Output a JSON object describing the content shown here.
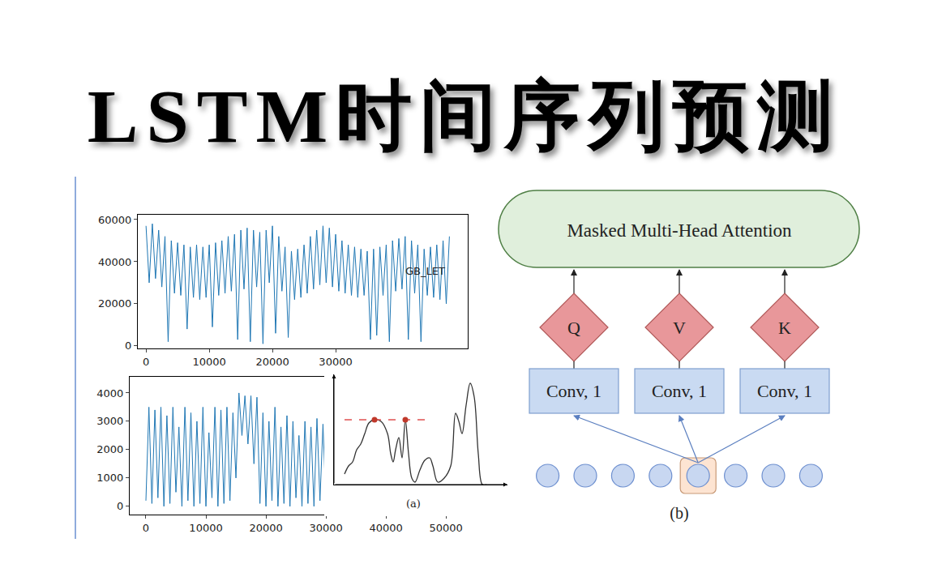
{
  "title": "LSTM时间序列预测",
  "chart_data": [
    {
      "type": "line",
      "color": "#1f77b4",
      "label": "GB_LET",
      "x": [
        0,
        500,
        1000,
        1500,
        2000,
        2500,
        3000,
        3500,
        4000,
        4500,
        5000,
        5500,
        6000,
        6500,
        7000,
        7500,
        8000,
        8500,
        9000,
        9500,
        10000,
        10500,
        11000,
        11500,
        12000,
        12500,
        13000,
        13500,
        14000,
        14500,
        15000,
        15500,
        16000,
        16500,
        17000,
        17500,
        18000,
        18500,
        19000,
        19500,
        20000,
        20500,
        21000,
        21500,
        22000,
        22500,
        23000,
        23500,
        24000,
        24500,
        25000,
        25500,
        26000,
        26500,
        27000,
        27500,
        28000,
        28500,
        29000,
        29500,
        30000,
        30500,
        31000,
        31500,
        32000,
        32500,
        33000,
        33500,
        34000,
        34500,
        35000,
        35500,
        36000,
        36500,
        37000,
        37500,
        38000,
        38500,
        39000,
        39500,
        40000,
        40500,
        41000,
        41500,
        42000,
        42500,
        43000,
        43500,
        44000,
        44500,
        45000,
        45500,
        46000,
        46500,
        47000,
        47500,
        48000
      ],
      "values": [
        57000,
        30000,
        58000,
        32000,
        55000,
        28000,
        52000,
        2000,
        50000,
        25000,
        49000,
        24000,
        48000,
        8000,
        47000,
        23000,
        48000,
        22000,
        47000,
        23000,
        48000,
        9000,
        49000,
        24000,
        50000,
        25000,
        52000,
        26000,
        53000,
        3000,
        55000,
        27000,
        56000,
        2000,
        55000,
        28000,
        54000,
        1000,
        55000,
        30000,
        57000,
        6000,
        52000,
        26000,
        47000,
        4000,
        45000,
        22000,
        46000,
        23000,
        48000,
        25000,
        52000,
        27000,
        55000,
        29000,
        57000,
        30000,
        56000,
        28000,
        53000,
        26000,
        50000,
        25000,
        48000,
        24000,
        47000,
        23000,
        46000,
        24000,
        45000,
        3000,
        46000,
        5000,
        47000,
        24000,
        48000,
        2000,
        50000,
        26000,
        51000,
        27000,
        52000,
        3000,
        50000,
        25000,
        48000,
        2000,
        46000,
        24000,
        47000,
        23000,
        48000,
        22000,
        50000,
        20000,
        52000
      ],
      "xlim": [
        -1300,
        50900
      ],
      "ylim": [
        -1200,
        62300
      ],
      "xticks": [
        0,
        10000,
        20000,
        30000
      ],
      "yticks": [
        0,
        20000,
        40000,
        60000
      ],
      "grid": false
    },
    {
      "type": "line",
      "color": "#1f77b4",
      "x": [
        0,
        500,
        1000,
        1500,
        2000,
        2500,
        3000,
        3500,
        4000,
        4500,
        5000,
        5500,
        6000,
        6500,
        7000,
        7500,
        8000,
        8500,
        9000,
        9500,
        10000,
        10500,
        11000,
        11500,
        12000,
        12500,
        13000,
        13500,
        14000,
        14500,
        15000,
        15500,
        16000,
        16500,
        17000,
        17500,
        18000,
        18500,
        19000,
        19500,
        20000,
        20500,
        21000,
        21500,
        22000,
        22500,
        23000,
        23500,
        24000,
        24500,
        25000,
        25500,
        26000,
        26500,
        27000,
        27500,
        28000,
        28500,
        29000,
        29500,
        30000
      ],
      "values": [
        200,
        3500,
        100,
        3400,
        300,
        3500,
        0,
        3200,
        100,
        3500,
        500,
        2800,
        0,
        3500,
        200,
        3300,
        0,
        3000,
        100,
        3500,
        0,
        2600,
        300,
        3500,
        0,
        3400,
        100,
        3500,
        200,
        3300,
        1000,
        4000,
        2500,
        3900,
        2200,
        3900,
        1500,
        3850,
        100,
        3300,
        0,
        3000,
        200,
        3500,
        0,
        2800,
        100,
        3200,
        0,
        3000,
        300,
        2500,
        0,
        3000,
        100,
        2800,
        0,
        3100,
        200,
        2900,
        100
      ],
      "xlim": [
        -2700,
        52000
      ],
      "ylim": [
        -290,
        4570
      ],
      "xticks": [
        0,
        10000,
        20000,
        30000,
        40000,
        50000
      ],
      "yticks": [
        0,
        1000,
        2000,
        3000,
        4000
      ],
      "grid": false
    },
    {
      "type": "line",
      "label": "(a)",
      "tick_labels": false,
      "xlim": [
        0,
        214
      ],
      "ylim": [
        0,
        136
      ],
      "series": [
        {
          "type": "line",
          "color": "#333333",
          "line_style": "solid",
          "x": [
            13,
            18,
            23,
            28,
            33,
            38,
            43,
            50,
            58,
            66,
            70,
            73,
            76,
            80,
            84,
            88,
            92,
            96,
            100,
            106,
            112,
            118,
            122,
            128,
            136,
            144,
            150,
            154,
            158,
            163,
            168,
            173,
            178,
            183,
            188
          ],
          "values": [
            13,
            23,
            28,
            43,
            50,
            63,
            76,
            80,
            78,
            63,
            38,
            28,
            43,
            58,
            33,
            80,
            38,
            8,
            3,
            18,
            30,
            33,
            23,
            3,
            8,
            23,
            88,
            78,
            63,
            98,
            125,
            108,
            38,
            0,
            0
          ]
        },
        {
          "type": "line",
          "color": "#e05050",
          "line_style": "dashed",
          "x": [
            13,
            118
          ],
          "values": [
            80,
            80
          ]
        },
        {
          "type": "scatter",
          "color": "#c0392b",
          "marker": "circle",
          "x": [
            50,
            88
          ],
          "values": [
            80,
            80
          ]
        }
      ]
    }
  ],
  "diagram": {
    "label": "(b)",
    "attention": "Masked Multi-Head Attention",
    "projections": [
      {
        "label": "Q",
        "conv": "Conv, 1"
      },
      {
        "label": "V",
        "conv": "Conv, 1"
      },
      {
        "label": "K",
        "conv": "Conv, 1"
      }
    ],
    "input_tokens": 8,
    "highlighted_index": 4
  }
}
